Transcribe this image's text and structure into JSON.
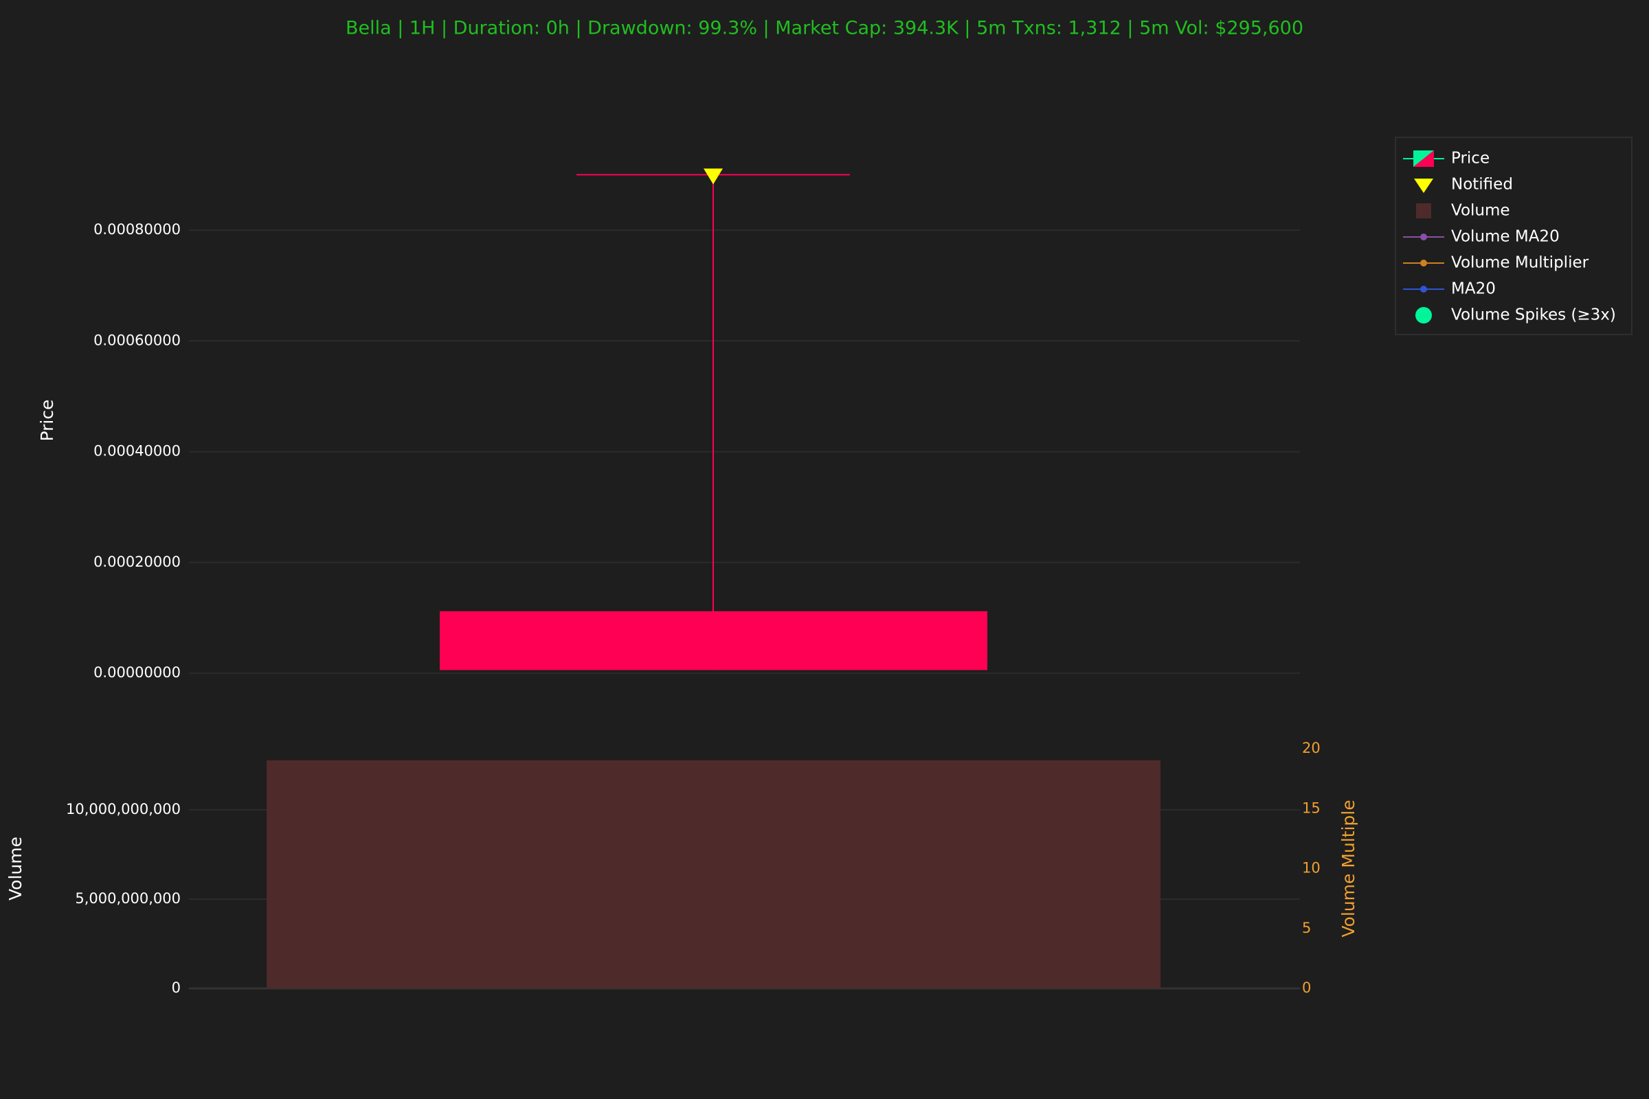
{
  "title": "Bella | 1H | Duration: 0h | Drawdown: 99.3% | Market Cap: 394.3K | 5m Txns: 1,312 | 5m Vol: $295,600",
  "chart_data": [
    {
      "type": "candlestick",
      "y_label": "Price",
      "categories": [
        null
      ],
      "open": [
        0.000112
      ],
      "high": [
        0.0009
      ],
      "low": [
        5.7e-06
      ],
      "close": [
        5.7e-06
      ],
      "up_color": "#00f59a",
      "down_color": "#ff0055",
      "notified": {
        "values": [
          0.0009
        ],
        "color": "#ffff00"
      },
      "ylim": [
        -3.7e-05,
        0.00095
      ],
      "yticks": [
        {
          "value": 0,
          "label": "0.00000000"
        },
        {
          "value": 0.0002,
          "label": "0.00020000"
        },
        {
          "value": 0.0004,
          "label": "0.00040000"
        },
        {
          "value": 0.0006,
          "label": "0.00060000"
        },
        {
          "value": 0.0008,
          "label": "0.00080000"
        }
      ],
      "grid": true
    },
    {
      "type": "bar",
      "y_label": "Volume",
      "y2_label": "Volume Multiple",
      "categories": [
        null
      ],
      "values": [
        12770000000
      ],
      "color": "#4f2a2a",
      "ylim": [
        0,
        13420000000
      ],
      "yticks": [
        0,
        {
          "value": 5000000000,
          "label": "5,000,000,000"
        },
        {
          "value": 10000000000,
          "label": "10,000,000,000"
        }
      ],
      "y2lim": [
        0,
        20
      ],
      "y2ticks": [
        0,
        5,
        10,
        15,
        20
      ],
      "y2_color": "#f0a030",
      "grid": true
    }
  ],
  "legend": {
    "position": "top-right",
    "entries": [
      {
        "name": "Price",
        "color": "#00f59a",
        "symbol": "candle"
      },
      {
        "name": "Notified",
        "color": "#ffff00",
        "symbol": "triangle-down"
      },
      {
        "name": "Volume",
        "color": "#4f2a2a",
        "symbol": "square"
      },
      {
        "name": "Volume MA20",
        "color": "#8a4fa8",
        "symbol": "line-dot"
      },
      {
        "name": "Volume MA20",
        "color": "#8a4fa8",
        "symbol": "line-dot"
      },
      {
        "name": "Volume Multiplier",
        "color": "#d08020",
        "symbol": "line-dot"
      },
      {
        "name": "MA20",
        "color": "#2f55d4",
        "symbol": "line-dot"
      },
      {
        "name": "Volume Spikes (≥3x)",
        "color": "#00f59a",
        "symbol": "circle"
      }
    ]
  }
}
